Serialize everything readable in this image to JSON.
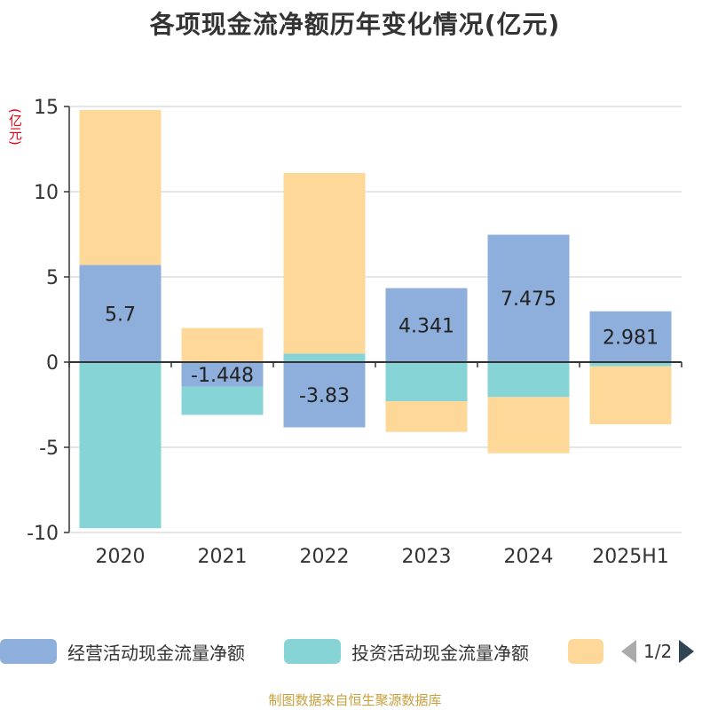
{
  "title": "各项现金流净额历年变化情况(亿元)",
  "unit": "(亿元)",
  "source": "制图数据来自恒生聚源数据库",
  "pager": {
    "text": "1/2"
  },
  "colors": {
    "operating": "#8eaedb",
    "investing": "#87d4d6",
    "financing": "#fed898",
    "axis": "#333333",
    "grid": "#cccccc"
  },
  "chart_data": {
    "type": "bar",
    "stacked": true,
    "categories": [
      "2020",
      "2021",
      "2022",
      "2023",
      "2024",
      "2025H1"
    ],
    "ylim": [
      -10,
      15
    ],
    "yticks": [
      15,
      10,
      5,
      0,
      -5,
      -10
    ],
    "series": [
      {
        "name": "经营活动现金流量净额",
        "key": "operating",
        "values": [
          5.7,
          -1.448,
          -3.83,
          4.341,
          7.475,
          2.981
        ],
        "labels": [
          "5.7",
          "-1.448",
          "-3.83",
          "4.341",
          "7.475",
          "2.981"
        ]
      },
      {
        "name": "投资活动现金流量净额",
        "key": "investing",
        "values": [
          -9.75,
          -1.65,
          0.5,
          -2.3,
          -2.05,
          -0.25
        ]
      },
      {
        "name": "",
        "key": "financing",
        "values": [
          9.1,
          2.0,
          10.6,
          -1.8,
          -3.3,
          -3.4
        ]
      }
    ]
  },
  "legend": [
    {
      "label": "经营活动现金流量净额",
      "key": "operating"
    },
    {
      "label": "投资活动现金流量净额",
      "key": "investing"
    },
    {
      "label": "",
      "key": "financing"
    }
  ]
}
